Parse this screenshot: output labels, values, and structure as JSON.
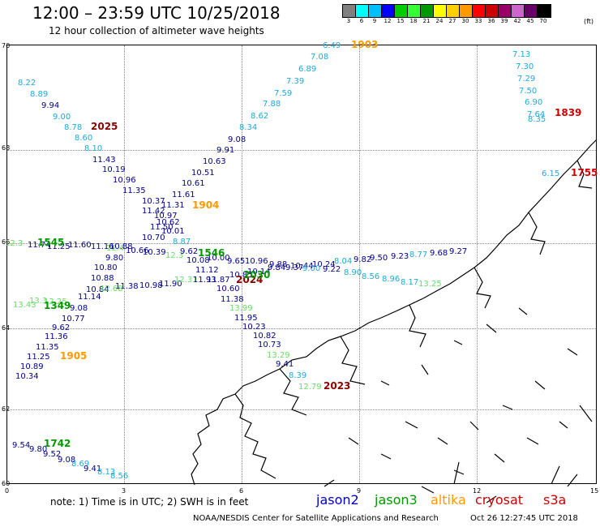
{
  "title": "12:00 – 23:59 UTC 10/25/2018",
  "subtitle": "12 hour collection of altimeter wave heights",
  "legend": {
    "colors": [
      "#808080",
      "#00ffff",
      "#00bfff",
      "#0000ff",
      "#00cc00",
      "#33ff33",
      "#009900",
      "#ffff00",
      "#ffd000",
      "#ff9900",
      "#ff0000",
      "#cc0000",
      "#990066",
      "#cc66cc",
      "#660066",
      "#000000"
    ],
    "values": [
      "3",
      "6",
      "9",
      "12",
      "15",
      "18",
      "21",
      "24",
      "27",
      "30",
      "33",
      "36",
      "39",
      "42",
      "45",
      "70"
    ],
    "unit": "(ft)"
  },
  "axes": {
    "y_ticks": [
      "70",
      "68",
      "66",
      "64",
      "62",
      "60"
    ],
    "x_ticks": [
      "0",
      "3",
      "6",
      "9",
      "12",
      "15"
    ]
  },
  "satellite_colors": {
    "jason2": "#0000cc",
    "jason3": "#009900",
    "altika": "#ff9900",
    "cryosat": "#cc0000",
    "s3a": "#cc0000",
    "j2dark": "#00008b",
    "j3light": "#66dd66",
    "cyan": "#1fa8dc",
    "dred": "#8b0000"
  },
  "passes": [
    {
      "label": "1903",
      "sat": "altika"
    },
    {
      "label": "2025",
      "sat": "dred"
    },
    {
      "label": "1904",
      "sat": "altika"
    },
    {
      "label": "1545",
      "sat": "jason3"
    },
    {
      "label": "1546",
      "sat": "jason3"
    },
    {
      "label": "2024",
      "sat": "dred"
    },
    {
      "label": "2030",
      "sat": "jason3"
    },
    {
      "label": "1349",
      "sat": "jason3"
    },
    {
      "label": "1905",
      "sat": "altika"
    },
    {
      "label": "2023",
      "sat": "dred"
    },
    {
      "label": "1742",
      "sat": "jason3"
    },
    {
      "label": "1839",
      "sat": "cryosat"
    },
    {
      "label": "1755",
      "sat": "cryosat"
    }
  ],
  "wave_values": [
    {
      "v": "6.49",
      "c": "cyan"
    },
    {
      "v": "7.08",
      "c": "cyan"
    },
    {
      "v": "6.89",
      "c": "cyan"
    },
    {
      "v": "7.39",
      "c": "cyan"
    },
    {
      "v": "7.59",
      "c": "cyan"
    },
    {
      "v": "7.88",
      "c": "cyan"
    },
    {
      "v": "8.62",
      "c": "cyan"
    },
    {
      "v": "8.34",
      "c": "cyan"
    },
    {
      "v": "9.08",
      "c": "j2dark"
    },
    {
      "v": "9.91",
      "c": "j2dark"
    },
    {
      "v": "10.63",
      "c": "j2dark"
    },
    {
      "v": "10.51",
      "c": "j2dark"
    },
    {
      "v": "10.61",
      "c": "j2dark"
    },
    {
      "v": "11.61",
      "c": "j2dark"
    },
    {
      "v": "11.31",
      "c": "j2dark"
    },
    {
      "v": "8.22",
      "c": "cyan"
    },
    {
      "v": "8.89",
      "c": "cyan"
    },
    {
      "v": "9.94",
      "c": "j2dark"
    },
    {
      "v": "9.00",
      "c": "cyan"
    },
    {
      "v": "8.78",
      "c": "cyan"
    },
    {
      "v": "8.60",
      "c": "cyan"
    },
    {
      "v": "8.10",
      "c": "cyan"
    },
    {
      "v": "11.43",
      "c": "j2dark"
    },
    {
      "v": "10.19",
      "c": "j2dark"
    },
    {
      "v": "10.96",
      "c": "j2dark"
    },
    {
      "v": "11.35",
      "c": "j2dark"
    },
    {
      "v": "10.37",
      "c": "j2dark"
    },
    {
      "v": "11.42",
      "c": "j2dark"
    },
    {
      "v": "10.97",
      "c": "j2dark"
    },
    {
      "v": "10.62",
      "c": "j2dark"
    },
    {
      "v": "11.50",
      "c": "j2dark"
    },
    {
      "v": "10.01",
      "c": "j2dark"
    },
    {
      "v": "10.70",
      "c": "j2dark"
    },
    {
      "v": "8.87",
      "c": "cyan"
    },
    {
      "v": "7.13",
      "c": "cyan"
    },
    {
      "v": "7.30",
      "c": "cyan"
    },
    {
      "v": "7.29",
      "c": "cyan"
    },
    {
      "v": "7.50",
      "c": "cyan"
    },
    {
      "v": "6.90",
      "c": "cyan"
    },
    {
      "v": "7.64",
      "c": "cyan"
    },
    {
      "v": "8.35",
      "c": "cyan"
    },
    {
      "v": "6.15",
      "c": "cyan"
    },
    {
      "v": "12.3",
      "c": "j3light"
    },
    {
      "v": "11.74",
      "c": "j2dark"
    },
    {
      "v": "11.25",
      "c": "j2dark"
    },
    {
      "v": "11.60",
      "c": "j2dark"
    },
    {
      "v": "11.16",
      "c": "j2dark"
    },
    {
      "v": "12.4",
      "c": "j3light"
    },
    {
      "v": "10.88",
      "c": "j2dark"
    },
    {
      "v": "10.39",
      "c": "j2dark"
    },
    {
      "v": "10.66",
      "c": "j2dark"
    },
    {
      "v": "12.3",
      "c": "j3light"
    },
    {
      "v": "9.62",
      "c": "j2dark"
    },
    {
      "v": "10.08",
      "c": "j2dark"
    },
    {
      "v": "10.00",
      "c": "j2dark"
    },
    {
      "v": "9.65",
      "c": "j2dark"
    },
    {
      "v": "10.96",
      "c": "j2dark"
    },
    {
      "v": "9.88",
      "c": "j2dark"
    },
    {
      "v": "10.44",
      "c": "j2dark"
    },
    {
      "v": "10.24",
      "c": "j2dark"
    },
    {
      "v": "8.04",
      "c": "cyan"
    },
    {
      "v": "9.82",
      "c": "j2dark"
    },
    {
      "v": "9.50",
      "c": "j2dark"
    },
    {
      "v": "9.23",
      "c": "j2dark"
    },
    {
      "v": "8.77",
      "c": "cyan"
    },
    {
      "v": "9.68",
      "c": "j2dark"
    },
    {
      "v": "9.27",
      "c": "j2dark"
    },
    {
      "v": "9.80",
      "c": "j2dark"
    },
    {
      "v": "10.80",
      "c": "j2dark"
    },
    {
      "v": "11.12",
      "c": "j2dark"
    },
    {
      "v": "10.88",
      "c": "j2dark"
    },
    {
      "v": "10.84",
      "c": "j2dark"
    },
    {
      "v": "10.98",
      "c": "j2dark"
    },
    {
      "v": "11.90",
      "c": "j2dark"
    },
    {
      "v": "12.31",
      "c": "j3light"
    },
    {
      "v": "11.93",
      "c": "j2dark"
    },
    {
      "v": "11.87",
      "c": "j2dark"
    },
    {
      "v": "10.85",
      "c": "j2dark"
    },
    {
      "v": "10.14",
      "c": "j2dark"
    },
    {
      "v": "9.84",
      "c": "j2dark"
    },
    {
      "v": "9.37",
      "c": "j2dark"
    },
    {
      "v": "9.00",
      "c": "cyan"
    },
    {
      "v": "9.22",
      "c": "j2dark"
    },
    {
      "v": "8.90",
      "c": "cyan"
    },
    {
      "v": "8.56",
      "c": "cyan"
    },
    {
      "v": "8.96",
      "c": "cyan"
    },
    {
      "v": "8.17",
      "c": "cyan"
    },
    {
      "v": "13.25",
      "c": "j3light"
    },
    {
      "v": "13.43",
      "c": "j3light"
    },
    {
      "v": "13.3",
      "c": "j3light"
    },
    {
      "v": "12.25",
      "c": "j3light"
    },
    {
      "v": "12.68",
      "c": "j3light"
    },
    {
      "v": "11.38",
      "c": "j2dark"
    },
    {
      "v": "11.14",
      "c": "j2dark"
    },
    {
      "v": "9.08",
      "c": "j2dark"
    },
    {
      "v": "10.77",
      "c": "j2dark"
    },
    {
      "v": "9.62",
      "c": "j2dark"
    },
    {
      "v": "10.60",
      "c": "j2dark"
    },
    {
      "v": "11.38",
      "c": "j2dark"
    },
    {
      "v": "13.99",
      "c": "j3light"
    },
    {
      "v": "11.95",
      "c": "j2dark"
    },
    {
      "v": "10.23",
      "c": "j2dark"
    },
    {
      "v": "10.82",
      "c": "j2dark"
    },
    {
      "v": "10.73",
      "c": "j2dark"
    },
    {
      "v": "13.29",
      "c": "j3light"
    },
    {
      "v": "9.41",
      "c": "j2dark"
    },
    {
      "v": "8.39",
      "c": "cyan"
    },
    {
      "v": "12.79",
      "c": "j3light"
    },
    {
      "v": "11.36",
      "c": "j2dark"
    },
    {
      "v": "11.35",
      "c": "j2dark"
    },
    {
      "v": "11.25",
      "c": "j2dark"
    },
    {
      "v": "10.89",
      "c": "j2dark"
    },
    {
      "v": "10.34",
      "c": "j2dark"
    },
    {
      "v": "9.54",
      "c": "j2dark"
    },
    {
      "v": "9.80",
      "c": "j2dark"
    },
    {
      "v": "9.52",
      "c": "j2dark"
    },
    {
      "v": "9.08",
      "c": "j2dark"
    },
    {
      "v": "8.69",
      "c": "cyan"
    },
    {
      "v": "9.41",
      "c": "j2dark"
    },
    {
      "v": "8.13",
      "c": "cyan"
    },
    {
      "v": "8.56",
      "c": "cyan"
    }
  ],
  "note": "note:  1) Time is in UTC;  2) SWH is in feet",
  "satellites": [
    {
      "label": "jason2",
      "color": "#0000cc"
    },
    {
      "label": "jason3",
      "color": "#009900"
    },
    {
      "label": "altika",
      "color": "#ff9900"
    },
    {
      "label": "cryosat",
      "color": "#cc0000"
    },
    {
      "label": "s3a",
      "color": "#cc0000"
    }
  ],
  "credit": "NOAA/NESDIS Center for Satellite Applications and Research",
  "generated": "Oct 26 12:27:45 UTC 2018"
}
